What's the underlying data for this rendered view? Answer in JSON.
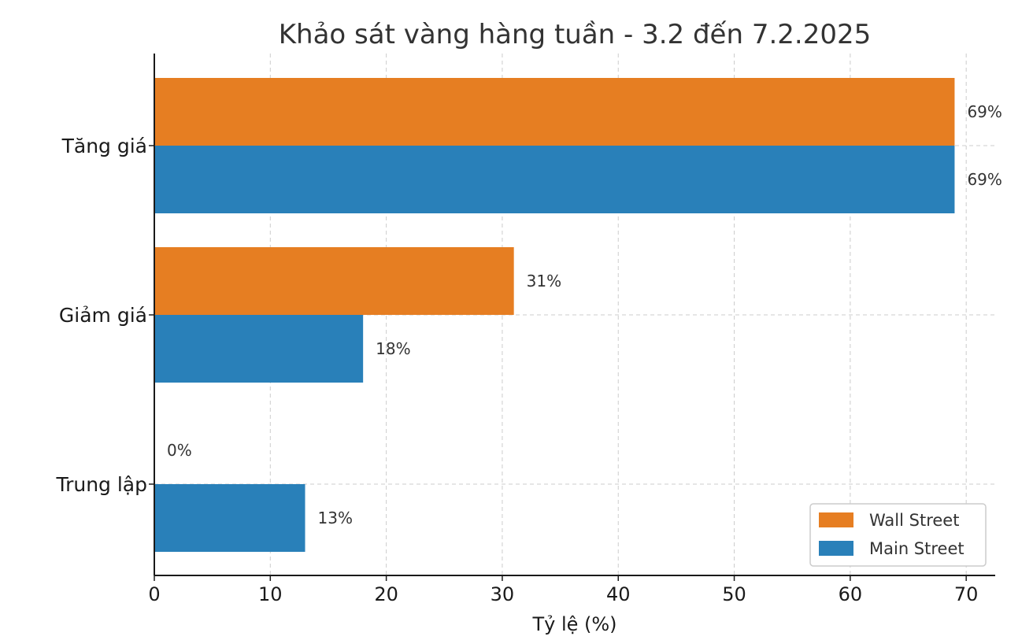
{
  "chart_data": {
    "type": "bar",
    "orientation": "horizontal",
    "title": "Khảo sát vàng hàng tuần - 3.2 đến 7.2.2025",
    "xlabel": "Tỷ lệ (%)",
    "ylabel": "",
    "xlim": [
      0,
      72.5
    ],
    "xticks": [
      0,
      10,
      20,
      30,
      40,
      50,
      60,
      70
    ],
    "categories": [
      "Tăng giá",
      "Giảm giá",
      "Trung lập"
    ],
    "series": [
      {
        "name": "Wall Street",
        "color": "#e67e22",
        "values": [
          69,
          31,
          0
        ],
        "labels": [
          "69%",
          "31%",
          "0%"
        ]
      },
      {
        "name": "Main Street",
        "color": "#2980b9",
        "values": [
          69,
          18,
          13
        ],
        "labels": [
          "69%",
          "18%",
          "13%"
        ]
      }
    ],
    "grid": true,
    "legend_position": "bottom-right"
  }
}
